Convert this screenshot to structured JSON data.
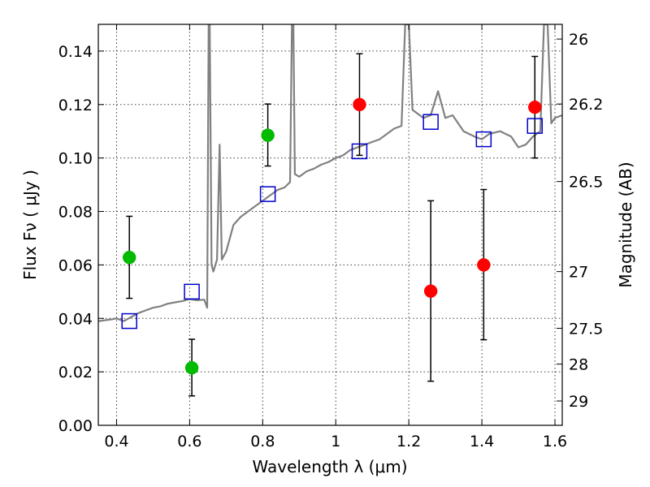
{
  "chart_data": {
    "type": "scatter",
    "xlabel": "Wavelength  λ (μm)",
    "ylabel": "Flux  Fν  ( μJy )",
    "y2label": "Magnitude (AB)",
    "xlim": [
      0.35,
      1.62
    ],
    "ylim": [
      0.0,
      0.15
    ],
    "xticks": [
      0.4,
      0.6,
      0.8,
      1.0,
      1.2,
      1.4,
      1.6
    ],
    "xtick_labels": [
      "0.4",
      "0.6",
      "0.8",
      "1",
      "1.2",
      "1.4",
      "1.6"
    ],
    "yticks": [
      0.0,
      0.02,
      0.04,
      0.06,
      0.08,
      0.1,
      0.12,
      0.14
    ],
    "ytick_labels": [
      "0.00",
      "0.02",
      "0.04",
      "0.06",
      "0.08",
      "0.10",
      "0.12",
      "0.14"
    ],
    "mag_ticks": [
      {
        "label": "26",
        "flux": 0.1445
      },
      {
        "label": "26.2",
        "flux": 0.1202
      },
      {
        "label": "26.5",
        "flux": 0.0912
      },
      {
        "label": "27",
        "flux": 0.0575
      },
      {
        "label": "27.5",
        "flux": 0.0363
      },
      {
        "label": "28",
        "flux": 0.0229
      },
      {
        "label": "29",
        "flux": 0.0091
      }
    ],
    "grid": true,
    "colors": {
      "green": "#00bb00",
      "red": "#ff0000",
      "model": "#808080",
      "square": "#0000cc",
      "errorbar": "#000000"
    },
    "series": [
      {
        "name": "green-detections",
        "color": "green",
        "points": [
          {
            "x": 0.435,
            "y": 0.0628,
            "lo": 0.0475,
            "hi": 0.0782
          },
          {
            "x": 0.606,
            "y": 0.0215,
            "lo": 0.011,
            "hi": 0.0322
          },
          {
            "x": 0.814,
            "y": 0.1085,
            "lo": 0.097,
            "hi": 0.1202
          }
        ]
      },
      {
        "name": "red-detections",
        "color": "red",
        "points": [
          {
            "x": 1.065,
            "y": 0.12,
            "lo": 0.101,
            "hi": 0.139
          },
          {
            "x": 1.26,
            "y": 0.0502,
            "lo": 0.0165,
            "hi": 0.084
          },
          {
            "x": 1.405,
            "y": 0.06,
            "lo": 0.032,
            "hi": 0.0882
          },
          {
            "x": 1.545,
            "y": 0.119,
            "lo": 0.1,
            "hi": 0.138
          }
        ]
      }
    ],
    "model_photometry": {
      "name": "model-bandpass-fluxes",
      "color": "square",
      "points": [
        {
          "x": 0.435,
          "y": 0.039
        },
        {
          "x": 0.606,
          "y": 0.05
        },
        {
          "x": 0.814,
          "y": 0.0865
        },
        {
          "x": 1.065,
          "y": 0.1025
        },
        {
          "x": 1.26,
          "y": 0.1135
        },
        {
          "x": 1.405,
          "y": 0.107
        },
        {
          "x": 1.545,
          "y": 0.112
        }
      ]
    },
    "model_spectrum": {
      "name": "model-sed",
      "color": "model",
      "points": [
        [
          0.35,
          0.039
        ],
        [
          0.38,
          0.0395
        ],
        [
          0.4,
          0.04
        ],
        [
          0.42,
          0.039
        ],
        [
          0.44,
          0.0405
        ],
        [
          0.46,
          0.042
        ],
        [
          0.48,
          0.043
        ],
        [
          0.5,
          0.044
        ],
        [
          0.52,
          0.0445
        ],
        [
          0.54,
          0.0455
        ],
        [
          0.56,
          0.046
        ],
        [
          0.58,
          0.0465
        ],
        [
          0.6,
          0.0472
        ],
        [
          0.62,
          0.0468
        ],
        [
          0.64,
          0.047
        ],
        [
          0.648,
          0.044
        ],
        [
          0.652,
          0.15
        ],
        [
          0.655,
          0.15
        ],
        [
          0.66,
          0.06
        ],
        [
          0.665,
          0.0575
        ],
        [
          0.675,
          0.062
        ],
        [
          0.682,
          0.105
        ],
        [
          0.688,
          0.062
        ],
        [
          0.7,
          0.065
        ],
        [
          0.72,
          0.075
        ],
        [
          0.74,
          0.078
        ],
        [
          0.76,
          0.08
        ],
        [
          0.78,
          0.082
        ],
        [
          0.8,
          0.084
        ],
        [
          0.82,
          0.086
        ],
        [
          0.84,
          0.088
        ],
        [
          0.86,
          0.089
        ],
        [
          0.875,
          0.091
        ],
        [
          0.88,
          0.15
        ],
        [
          0.884,
          0.15
        ],
        [
          0.888,
          0.094
        ],
        [
          0.9,
          0.093
        ],
        [
          0.92,
          0.095
        ],
        [
          0.94,
          0.096
        ],
        [
          0.96,
          0.0975
        ],
        [
          0.98,
          0.0985
        ],
        [
          1.0,
          0.1
        ],
        [
          1.02,
          0.101
        ],
        [
          1.04,
          0.103
        ],
        [
          1.06,
          0.104
        ],
        [
          1.08,
          0.105
        ],
        [
          1.1,
          0.106
        ],
        [
          1.12,
          0.107
        ],
        [
          1.14,
          0.109
        ],
        [
          1.16,
          0.111
        ],
        [
          1.18,
          0.112
        ],
        [
          1.19,
          0.15
        ],
        [
          1.2,
          0.15
        ],
        [
          1.21,
          0.118
        ],
        [
          1.24,
          0.115
        ],
        [
          1.26,
          0.116
        ],
        [
          1.28,
          0.125
        ],
        [
          1.3,
          0.115
        ],
        [
          1.32,
          0.116
        ],
        [
          1.35,
          0.11
        ],
        [
          1.38,
          0.108
        ],
        [
          1.4,
          0.107
        ],
        [
          1.42,
          0.109
        ],
        [
          1.45,
          0.11
        ],
        [
          1.48,
          0.108
        ],
        [
          1.5,
          0.104
        ],
        [
          1.52,
          0.105
        ],
        [
          1.54,
          0.108
        ],
        [
          1.56,
          0.11
        ],
        [
          1.57,
          0.15
        ],
        [
          1.58,
          0.15
        ],
        [
          1.59,
          0.113
        ],
        [
          1.6,
          0.115
        ],
        [
          1.62,
          0.116
        ]
      ]
    }
  }
}
